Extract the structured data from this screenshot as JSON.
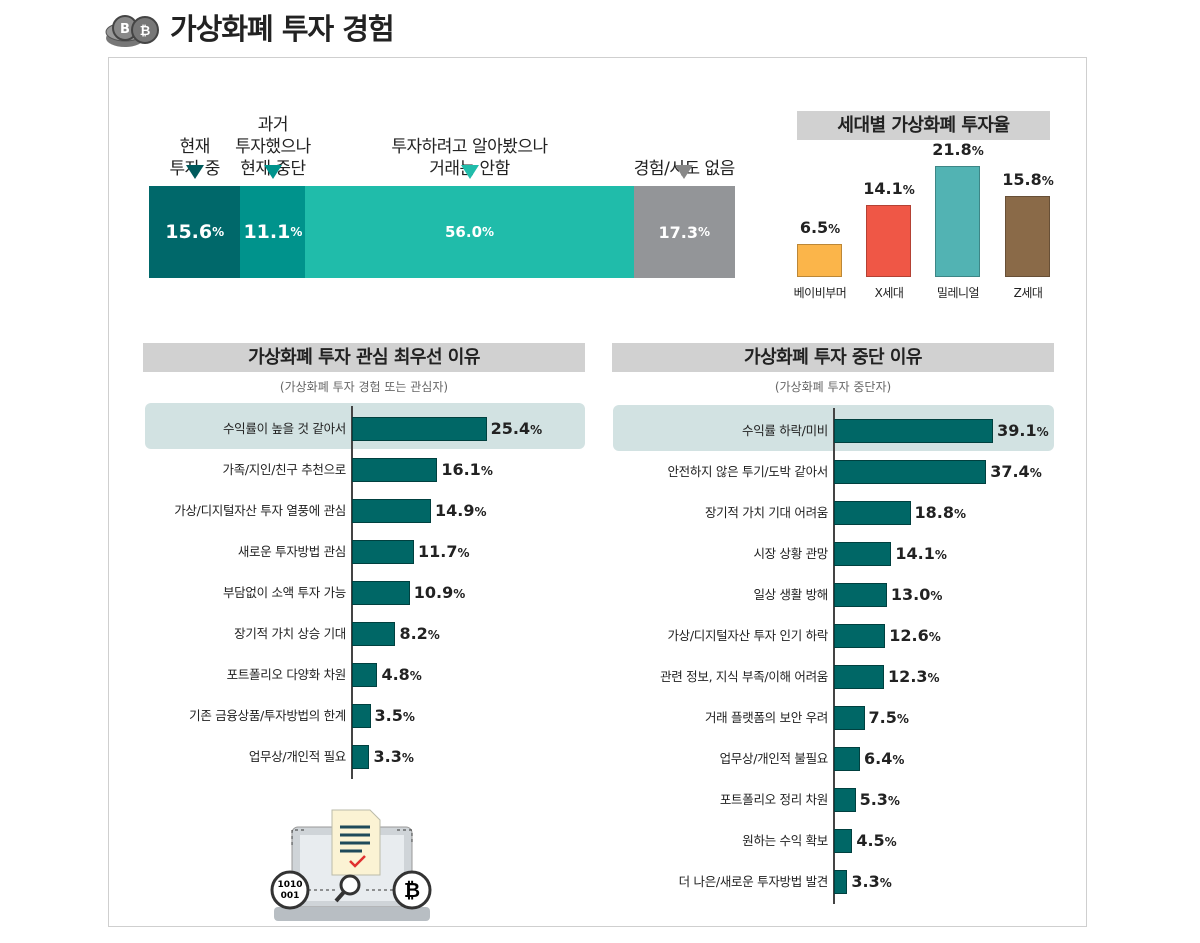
{
  "title": "가상화폐 투자 경험",
  "colors": {
    "seg": [
      "#00686a",
      "#00938c",
      "#20bcaa",
      "#939598"
    ],
    "bar": "#006766",
    "gen": [
      "#fbb54a",
      "#ef5746",
      "#52b3b3",
      "#8a6a48"
    ],
    "highlight": "#d2e2e2"
  },
  "chart_data": [
    {
      "type": "bar",
      "orientation": "stacked-horizontal",
      "categories": [
        "현재 투자 중",
        "과거 투자했으나 현재 중단",
        "투자하려고 알아봤으나 거래는 안함",
        "경험/시도 없음"
      ],
      "labels_lines": [
        [
          "현재",
          "투자 중"
        ],
        [
          "과거",
          "투자했으나",
          "현재 중단"
        ],
        [
          "투자하려고 알아봤으나",
          "거래는 안함"
        ],
        [
          "경험/시도 없음"
        ]
      ],
      "values": [
        15.6,
        11.1,
        56.0,
        17.3
      ],
      "value_labels": [
        "15.6",
        "11.1",
        "56.0",
        "17.3"
      ],
      "unit": "%"
    },
    {
      "type": "bar",
      "title": "세대별 가상화폐 투자율",
      "categories": [
        "베이비부머",
        "X세대",
        "밀레니얼",
        "Z세대"
      ],
      "values": [
        6.5,
        14.1,
        21.8,
        15.8
      ],
      "value_labels": [
        "6.5",
        "14.1",
        "21.8",
        "15.8"
      ],
      "unit": "%"
    },
    {
      "type": "bar",
      "orientation": "horizontal",
      "title": "가상화폐 투자 관심 최우선 이유",
      "subtitle": "(가상화폐 투자 경험 또는 관심자)",
      "categories": [
        "수익률이 높을 것 같아서",
        "가족/지인/친구 추천으로",
        "가상/디지털자산 투자 열풍에 관심",
        "새로운 투자방법 관심",
        "부담없이 소액 투자 가능",
        "장기적 가치 상승 기대",
        "포트폴리오 다양화 차원",
        "기존 금융상품/투자방법의 한계",
        "업무상/개인적 필요"
      ],
      "values": [
        25.4,
        16.1,
        14.9,
        11.7,
        10.9,
        8.2,
        4.8,
        3.5,
        3.3
      ],
      "value_labels": [
        "25.4",
        "16.1",
        "14.9",
        "11.7",
        "10.9",
        "8.2",
        "4.8",
        "3.5",
        "3.3"
      ],
      "unit": "%",
      "highlighted": 0
    },
    {
      "type": "bar",
      "orientation": "horizontal",
      "title": "가상화폐 투자 중단 이유",
      "subtitle": "(가상화폐 투자 중단자)",
      "categories": [
        "수익률 하락/미비",
        "안전하지 않은 투기/도박 같아서",
        "장기적 가치 기대 어려움",
        "시장 상황 관망",
        "일상 생활 방해",
        "가상/디지털자산 투자 인기 하락",
        "관련 정보, 지식 부족/이해 어려움",
        "거래 플랫폼의 보안 우려",
        "업무상/개인적 불필요",
        "포트폴리오 정리 차원",
        "원하는 수익 확보",
        "더 나은/새로운 투자방법 발견"
      ],
      "values": [
        39.1,
        37.4,
        18.8,
        14.1,
        13.0,
        12.6,
        12.3,
        7.5,
        6.4,
        5.3,
        4.5,
        3.3
      ],
      "value_labels": [
        "39.1",
        "37.4",
        "18.8",
        "14.1",
        "13.0",
        "12.6",
        "12.3",
        "7.5",
        "6.4",
        "5.3",
        "4.5",
        "3.3"
      ],
      "unit": "%",
      "highlighted": 0
    }
  ],
  "illustration": {
    "binary_text": [
      "1010",
      "001"
    ]
  }
}
